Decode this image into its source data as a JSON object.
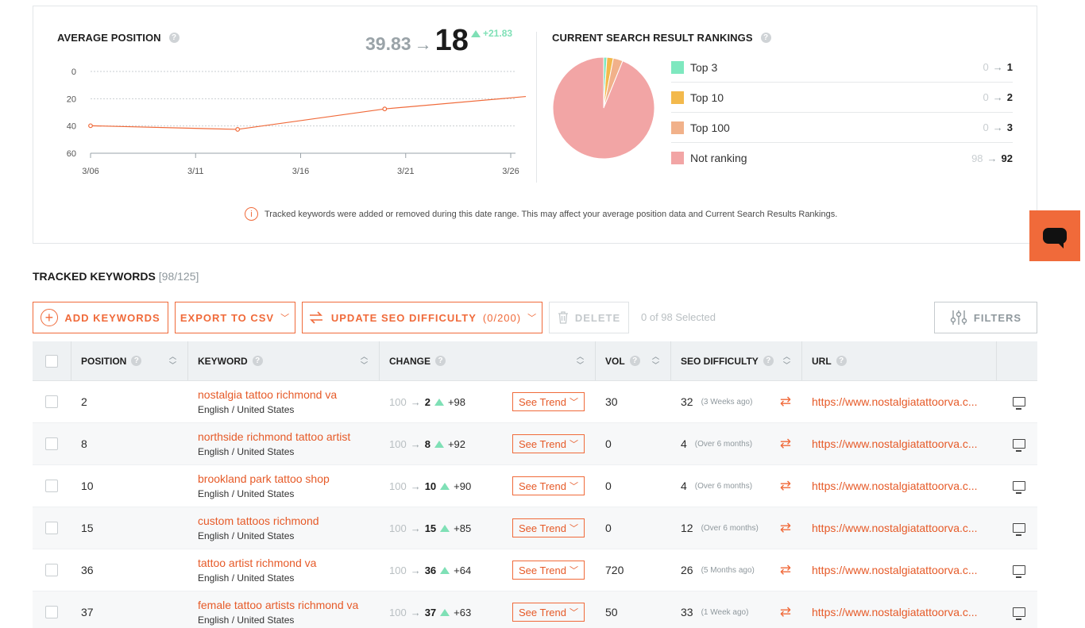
{
  "avg_position": {
    "title": "AVERAGE POSITION",
    "from": "39.83",
    "arrow": "→",
    "to": "18",
    "delta": "+21.83",
    "y_ticks": [
      "0",
      "20",
      "40",
      "60"
    ],
    "x_ticks": [
      "3/06",
      "3/11",
      "3/16",
      "3/21",
      "3/26"
    ]
  },
  "rankings": {
    "title": "CURRENT SEARCH RESULT RANKINGS",
    "items": [
      {
        "label": "Top 3",
        "from": "0",
        "to": "1",
        "color": "#7ee8bf"
      },
      {
        "label": "Top 10",
        "from": "0",
        "to": "2",
        "color": "#f3b94c"
      },
      {
        "label": "Top 100",
        "from": "0",
        "to": "3",
        "color": "#f1b18a"
      },
      {
        "label": "Not ranking",
        "from": "98",
        "to": "92",
        "color": "#f2a5a5"
      }
    ]
  },
  "notice": {
    "text": "Tracked keywords were added or removed during this date range. This may affect your average position data and Current Search Results Rankings."
  },
  "tracked": {
    "title": "TRACKED KEYWORDS",
    "count": "[98/125]"
  },
  "toolbar": {
    "add_label": "ADD KEYWORDS",
    "export_label": "EXPORT TO CSV",
    "update_label": "UPDATE SEO DIFFICULTY",
    "update_count": "(0/200)",
    "delete_label": "DELETE",
    "selected_text": "0 of 98 Selected",
    "filters_label": "FILTERS"
  },
  "table": {
    "headers": {
      "position": "POSITION",
      "keyword": "KEYWORD",
      "change": "CHANGE",
      "vol": "VOL",
      "seo": "SEO DIFFICULTY",
      "url": "URL"
    },
    "see_trend_label": "See Trend",
    "rows": [
      {
        "position": "2",
        "keyword": "nostalgia tattoo richmond va",
        "locale": "English / United States",
        "from": "100",
        "to": "2",
        "delta": "+98",
        "vol": "30",
        "seo": "32",
        "seo_age": "(3 Weeks ago)",
        "url": "https://www.nostalgiatattoorva.c..."
      },
      {
        "position": "8",
        "keyword": "northside richmond tattoo artist",
        "locale": "English / United States",
        "from": "100",
        "to": "8",
        "delta": "+92",
        "vol": "0",
        "seo": "4",
        "seo_age": "(Over 6 months)",
        "url": "https://www.nostalgiatattoorva.c..."
      },
      {
        "position": "10",
        "keyword": "brookland park tattoo shop",
        "locale": "English / United States",
        "from": "100",
        "to": "10",
        "delta": "+90",
        "vol": "0",
        "seo": "4",
        "seo_age": "(Over 6 months)",
        "url": "https://www.nostalgiatattoorva.c..."
      },
      {
        "position": "15",
        "keyword": "custom tattoos richmond",
        "locale": "English / United States",
        "from": "100",
        "to": "15",
        "delta": "+85",
        "vol": "0",
        "seo": "12",
        "seo_age": "(Over 6 months)",
        "url": "https://www.nostalgiatattoorva.c..."
      },
      {
        "position": "36",
        "keyword": "tattoo artist richmond va",
        "locale": "English / United States",
        "from": "100",
        "to": "36",
        "delta": "+64",
        "vol": "720",
        "seo": "26",
        "seo_age": "(5 Months ago)",
        "url": "https://www.nostalgiatattoorva.c..."
      },
      {
        "position": "37",
        "keyword": "female tattoo artists richmond va",
        "locale": "English / United States",
        "from": "100",
        "to": "37",
        "delta": "+63",
        "vol": "50",
        "seo": "33",
        "seo_age": "(1 Week ago)",
        "url": "https://www.nostalgiatattoorva.c..."
      }
    ]
  },
  "colors": {
    "accent": "#f06a3a",
    "trend_up": "#7fe0b6"
  },
  "chart_data": [
    {
      "type": "line",
      "title": "AVERAGE POSITION",
      "x": [
        "3/06",
        "3/13",
        "3/20",
        "3/27"
      ],
      "series": [
        {
          "values": [
            39.83,
            42.5,
            27.5,
            18
          ]
        }
      ],
      "ylim": [
        60,
        0
      ],
      "y_inverted": true,
      "x_ticks": [
        "3/06",
        "3/11",
        "3/16",
        "3/21",
        "3/26"
      ],
      "grid": true
    },
    {
      "type": "pie",
      "title": "CURRENT SEARCH RESULT RANKINGS",
      "categories": [
        "Top 3",
        "Top 10",
        "Top 100",
        "Not ranking"
      ],
      "values": [
        1,
        2,
        3,
        92
      ]
    }
  ]
}
